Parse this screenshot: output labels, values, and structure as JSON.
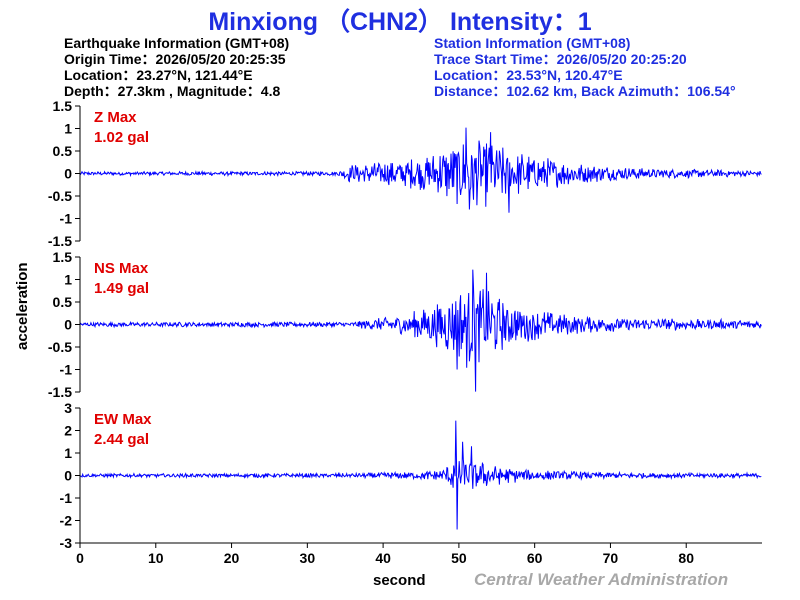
{
  "title": "Minxiong （CHN2） Intensity：1",
  "earthquake_info": {
    "heading": "Earthquake Information  (GMT+08)",
    "origin_time": "Origin Time：2026/05/20 20:25:35",
    "location": "Location：23.27°N, 121.44°E",
    "depth_magnitude": "Depth：27.3km , Magnitude：4.8"
  },
  "station_info": {
    "heading": "Station Information  (GMT+08)",
    "trace_start": "Trace Start Time：2026/05/20 20:25:20",
    "location": "Location：23.53°N, 120.47°E",
    "distance": "Distance：102.62 km, Back Azimuth：106.54°"
  },
  "credit": "Central Weather Administration",
  "colors": {
    "trace": "#0000ff",
    "title": "#1f2fe0",
    "max_label": "#e00000",
    "axis": "#000000"
  },
  "chart_data": {
    "type": "line",
    "xlabel": "second",
    "ylabel": "acceleration",
    "xlim": [
      0,
      90
    ],
    "x_ticks": [
      "0",
      "10",
      "20",
      "30",
      "40",
      "50",
      "60",
      "70",
      "80"
    ],
    "panels": [
      {
        "name": "Z Max",
        "max_value": "1.02 gal",
        "ylim": [
          -1.5,
          1.5
        ],
        "y_ticks": [
          "1.5",
          "1",
          "0.5",
          "0",
          "-0.5",
          "-1",
          "-1.5"
        ],
        "peak": 1.02,
        "envelope": [
          [
            0,
            0.04
          ],
          [
            34,
            0.05
          ],
          [
            35.5,
            0.2
          ],
          [
            40,
            0.28
          ],
          [
            45,
            0.4
          ],
          [
            48,
            0.6
          ],
          [
            51,
            0.85
          ],
          [
            54,
            0.75
          ],
          [
            58,
            0.5
          ],
          [
            62,
            0.35
          ],
          [
            68,
            0.2
          ],
          [
            75,
            0.12
          ],
          [
            90,
            0.06
          ]
        ],
        "spikes": [
          [
            50.9,
            1.02
          ],
          [
            51.4,
            -0.8
          ],
          [
            56.6,
            -0.87
          ],
          [
            54.2,
            0.92
          ]
        ]
      },
      {
        "name": "NS Max",
        "max_value": "1.49 gal",
        "ylim": [
          -1.5,
          1.5
        ],
        "y_ticks": [
          "1.5",
          "1",
          "0.5",
          "0",
          "-0.5",
          "-1",
          "-1.5"
        ],
        "peak": 1.49,
        "envelope": [
          [
            0,
            0.05
          ],
          [
            36,
            0.06
          ],
          [
            38,
            0.12
          ],
          [
            42,
            0.2
          ],
          [
            46,
            0.4
          ],
          [
            48.5,
            0.7
          ],
          [
            51,
            1.0
          ],
          [
            54,
            0.85
          ],
          [
            56,
            0.55
          ],
          [
            60,
            0.35
          ],
          [
            65,
            0.22
          ],
          [
            72,
            0.15
          ],
          [
            90,
            0.1
          ]
        ],
        "spikes": [
          [
            52.2,
            -1.49
          ],
          [
            51.8,
            1.22
          ],
          [
            53.6,
            1.15
          ],
          [
            49.8,
            -1.0
          ]
        ]
      },
      {
        "name": "EW Max",
        "max_value": "2.44 gal",
        "ylim": [
          -3,
          3
        ],
        "y_ticks": [
          "3",
          "2",
          "1",
          "0",
          "-1",
          "-2",
          "-3"
        ],
        "peak": 2.44,
        "envelope": [
          [
            0,
            0.08
          ],
          [
            36,
            0.1
          ],
          [
            40,
            0.14
          ],
          [
            45,
            0.18
          ],
          [
            48,
            0.3
          ],
          [
            49.5,
            0.8
          ],
          [
            52,
            0.7
          ],
          [
            55,
            0.45
          ],
          [
            58,
            0.3
          ],
          [
            62,
            0.22
          ],
          [
            70,
            0.14
          ],
          [
            90,
            0.1
          ]
        ],
        "spikes": [
          [
            49.6,
            2.44
          ],
          [
            49.8,
            -2.4
          ],
          [
            50.5,
            1.5
          ],
          [
            51.7,
            1.3
          ]
        ]
      }
    ]
  }
}
